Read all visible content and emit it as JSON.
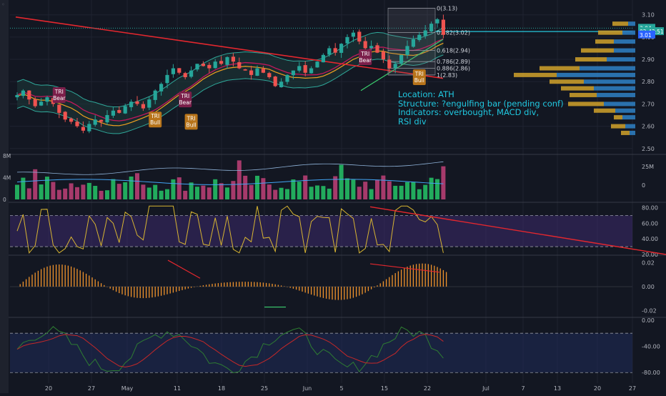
{
  "chart_data": {
    "type": "candlestick",
    "x_tick_labels": [
      "20",
      "27",
      "May",
      "11",
      "18",
      "25",
      "Jun",
      "5",
      "15",
      "22",
      "Jul",
      "7",
      "13",
      "20",
      "27"
    ],
    "price_panel": {
      "ylim": [
        2.48,
        3.16
      ],
      "y_ticks": [
        "3.10",
        "3.00",
        "2.90",
        "2.80",
        "2.70",
        "2.60",
        "2.50"
      ],
      "ohlc_first_close": 2.74,
      "closes": [
        2.74,
        2.76,
        2.72,
        2.69,
        2.71,
        2.73,
        2.7,
        2.66,
        2.63,
        2.62,
        2.6,
        2.58,
        2.61,
        2.63,
        2.62,
        2.65,
        2.67,
        2.66,
        2.69,
        2.71,
        2.7,
        2.68,
        2.72,
        2.76,
        2.79,
        2.83,
        2.86,
        2.84,
        2.82,
        2.85,
        2.88,
        2.87,
        2.86,
        2.89,
        2.88,
        2.91,
        2.89,
        2.86,
        2.85,
        2.83,
        2.86,
        2.84,
        2.82,
        2.78,
        2.8,
        2.83,
        2.85,
        2.87,
        2.84,
        2.86,
        2.89,
        2.92,
        2.95,
        2.93,
        2.97,
        3.0,
        3.02,
        2.98,
        2.95,
        2.96,
        2.93,
        2.9,
        2.86,
        2.88,
        2.92,
        2.96,
        2.99,
        3.01,
        3.03,
        3.06,
        3.08,
        3.01
      ],
      "fibonacci": [
        {
          "label": "0(3.13)",
          "value": 3.13
        },
        {
          "label": "0.382(3.02)",
          "value": 3.02
        },
        {
          "label": "0.618(2.94)",
          "value": 2.94
        },
        {
          "label": "0.786(2.89)",
          "value": 2.89
        },
        {
          "label": "0.886(2.86)",
          "value": 2.86
        },
        {
          "label": "1(2.83)",
          "value": 2.83
        }
      ],
      "price_labels": [
        {
          "text": "3.04",
          "value": 3.04,
          "color": "#26a69a"
        },
        {
          "text": "02:43:51",
          "value": 3.025,
          "color": "#26a69a"
        },
        {
          "text": "3.01",
          "value": 3.01,
          "color": "#2962ff"
        }
      ],
      "pattern_markers": [
        {
          "text": [
            "TRI",
            "Bear"
          ],
          "type": "bear",
          "index": 7,
          "value": 2.74
        },
        {
          "text": [
            "TRI",
            "Bull"
          ],
          "type": "bull",
          "index": 23,
          "value": 2.63
        },
        {
          "text": [
            "TRI",
            "Bear"
          ],
          "type": "bear",
          "index": 28,
          "value": 2.72
        },
        {
          "text": [
            "TRI",
            "Bull"
          ],
          "type": "bull",
          "index": 29,
          "value": 2.62
        },
        {
          "text": [
            "TRI",
            "Bear"
          ],
          "type": "bear",
          "index": 58,
          "value": 2.91
        },
        {
          "text": [
            "TRI",
            "Bull"
          ],
          "type": "bull",
          "index": 67,
          "value": 2.82
        }
      ],
      "volume_profile": [
        {
          "price": 3.06,
          "up": 22,
          "down": 10
        },
        {
          "price": 3.02,
          "up": 34,
          "down": 18
        },
        {
          "price": 2.98,
          "up": 26,
          "down": 30
        },
        {
          "price": 2.94,
          "up": 46,
          "down": 30
        },
        {
          "price": 2.9,
          "up": 44,
          "down": 40
        },
        {
          "price": 2.86,
          "up": 56,
          "down": 78
        },
        {
          "price": 2.83,
          "up": 60,
          "down": 110
        },
        {
          "price": 2.8,
          "up": 48,
          "down": 72
        },
        {
          "price": 2.77,
          "up": 46,
          "down": 58
        },
        {
          "price": 2.74,
          "up": 38,
          "down": 54
        },
        {
          "price": 2.7,
          "up": 50,
          "down": 44
        },
        {
          "price": 2.67,
          "up": 30,
          "down": 28
        },
        {
          "price": 2.64,
          "up": 12,
          "down": 18
        },
        {
          "price": 2.6,
          "up": 20,
          "down": 14
        },
        {
          "price": 2.57,
          "up": 12,
          "down": 8
        }
      ]
    },
    "annotation": {
      "lines": [
        "Location: ATH",
        "Structure: ?engulfing bar (pending conf)",
        "Indicators: overbought, MACD div,",
        "RSI div"
      ]
    },
    "volume_panel": {
      "ylim_left": [
        0,
        8
      ],
      "left_ticks": [
        "8M",
        "4M",
        "0"
      ],
      "right_ticks": [
        "25M",
        "0"
      ]
    },
    "rsi_panel": {
      "ylim": [
        20,
        85
      ],
      "y_ticks": [
        "80.00",
        "60.00",
        "40.00",
        "20.00"
      ],
      "upper_band": 70,
      "lower_band": 30
    },
    "macd_panel": {
      "ylim": [
        -0.025,
        0.025
      ],
      "y_ticks": [
        "0.02",
        "0.00",
        "-0.02"
      ]
    },
    "fourth_panel": {
      "ylim": [
        -95,
        2
      ],
      "y_ticks": [
        "0.00",
        "-40.00",
        "-80.00"
      ],
      "upper_band": -20,
      "lower_band": -80
    },
    "colors": {
      "background": "#131722",
      "up": "#26a69a",
      "down": "#ef5350",
      "volume_up": "#22ab5d",
      "volume_down": "#a63a6b",
      "profile_up": "#c79a2a",
      "profile_down": "#2e7bbd",
      "trend_line": "#e3272e",
      "rsi": "#d8b532",
      "macd": "#f0932c",
      "annotation": "#20c8e0"
    }
  }
}
